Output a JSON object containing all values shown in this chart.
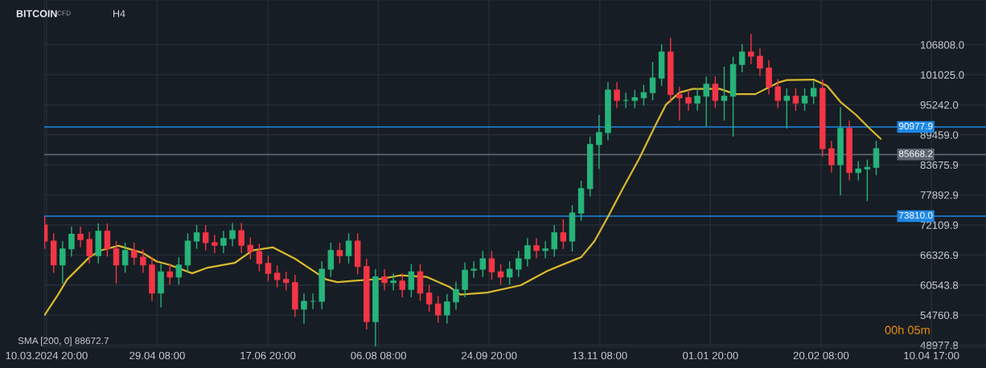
{
  "chart_data": {
    "type": "candlestick",
    "title": "BITCOIN",
    "subtitle": "CFD",
    "x": [
      "2024-03-10",
      "2024-03-14",
      "2024-03-18",
      "2024-03-22",
      "2024-03-26",
      "2024-03-30",
      "2024-04-03",
      "2024-04-07",
      "2024-04-11",
      "2024-04-15",
      "2024-04-19",
      "2024-04-23",
      "2024-04-27",
      "2024-05-01",
      "2024-05-05",
      "2024-05-09",
      "2024-05-13",
      "2024-05-17",
      "2024-05-21",
      "2024-05-25",
      "2024-05-29",
      "2024-06-02",
      "2024-06-06",
      "2024-06-10",
      "2024-06-14",
      "2024-06-18",
      "2024-06-22",
      "2024-06-26",
      "2024-06-30",
      "2024-07-04",
      "2024-07-08",
      "2024-07-12",
      "2024-07-16",
      "2024-07-20",
      "2024-07-24",
      "2024-07-28",
      "2024-08-01",
      "2024-08-05",
      "2024-08-09",
      "2024-08-13",
      "2024-08-17",
      "2024-08-21",
      "2024-08-25",
      "2024-08-29",
      "2024-09-02",
      "2024-09-06",
      "2024-09-10",
      "2024-09-14",
      "2024-09-18",
      "2024-09-22",
      "2024-09-26",
      "2024-09-30",
      "2024-10-04",
      "2024-10-08",
      "2024-10-12",
      "2024-10-16",
      "2024-10-20",
      "2024-10-24",
      "2024-10-28",
      "2024-11-01",
      "2024-11-05",
      "2024-11-09",
      "2024-11-13",
      "2024-11-17",
      "2024-11-21",
      "2024-11-25",
      "2024-11-29",
      "2024-12-03",
      "2024-12-07",
      "2024-12-11",
      "2024-12-15",
      "2024-12-19",
      "2024-12-23",
      "2024-12-27",
      "2024-12-31",
      "2025-01-04",
      "2025-01-08",
      "2025-01-12",
      "2025-01-16",
      "2025-01-20",
      "2025-01-24",
      "2025-01-28",
      "2025-02-01",
      "2025-02-05",
      "2025-02-09",
      "2025-02-13",
      "2025-02-17",
      "2025-02-21",
      "2025-02-25",
      "2025-03-01",
      "2025-03-05",
      "2025-03-09",
      "2025-03-13",
      "2025-03-17"
    ],
    "ohlc": [
      [
        72100,
        73800,
        67500,
        69000
      ],
      [
        69000,
        70500,
        62900,
        64400
      ],
      [
        64400,
        69000,
        60800,
        67500
      ],
      [
        67500,
        71800,
        66000,
        70300
      ],
      [
        70300,
        71800,
        67800,
        69300
      ],
      [
        69300,
        70800,
        64700,
        66200
      ],
      [
        66200,
        72400,
        64700,
        70900
      ],
      [
        70900,
        72400,
        66000,
        67500
      ],
      [
        67500,
        69000,
        60800,
        64400
      ],
      [
        64400,
        68700,
        62900,
        67200
      ],
      [
        67200,
        68700,
        64400,
        65900
      ],
      [
        65900,
        67400,
        62900,
        64400
      ],
      [
        64400,
        65900,
        57500,
        59000
      ],
      [
        59000,
        64600,
        56200,
        63100
      ],
      [
        63100,
        64600,
        60600,
        62100
      ],
      [
        62100,
        65900,
        60600,
        64400
      ],
      [
        64400,
        70500,
        62900,
        69000
      ],
      [
        69000,
        72100,
        67500,
        70600
      ],
      [
        70600,
        72100,
        67200,
        68700
      ],
      [
        68700,
        70200,
        66700,
        68200
      ],
      [
        68200,
        71000,
        66700,
        69500
      ],
      [
        69500,
        72500,
        68000,
        71000
      ],
      [
        71000,
        72500,
        66700,
        68200
      ],
      [
        68200,
        69700,
        65500,
        67000
      ],
      [
        67000,
        68500,
        63200,
        64700
      ],
      [
        64700,
        66200,
        61300,
        62800
      ],
      [
        62800,
        64300,
        60100,
        61600
      ],
      [
        61600,
        63100,
        59500,
        61000
      ],
      [
        61000,
        62500,
        54400,
        55900
      ],
      [
        55900,
        58900,
        53100,
        57400
      ],
      [
        57400,
        58900,
        55900,
        57400
      ],
      [
        57400,
        65100,
        55900,
        63600
      ],
      [
        63600,
        68700,
        62100,
        67200
      ],
      [
        67200,
        68700,
        64700,
        66200
      ],
      [
        66200,
        70500,
        64700,
        69000
      ],
      [
        69000,
        70500,
        62600,
        64100
      ],
      [
        64100,
        65600,
        52000,
        53500
      ],
      [
        53500,
        63600,
        48700,
        62100
      ],
      [
        62100,
        63600,
        59500,
        61000
      ],
      [
        61000,
        62800,
        59500,
        61300
      ],
      [
        61300,
        62800,
        58200,
        59700
      ],
      [
        59700,
        64600,
        58200,
        63100
      ],
      [
        63100,
        64600,
        57500,
        59000
      ],
      [
        59000,
        60500,
        55400,
        56900
      ],
      [
        56900,
        58400,
        53300,
        54800
      ],
      [
        54800,
        58800,
        53100,
        57300
      ],
      [
        57300,
        61200,
        55800,
        59700
      ],
      [
        59700,
        64900,
        58200,
        63400
      ],
      [
        63400,
        65100,
        61900,
        63600
      ],
      [
        63600,
        67100,
        62100,
        65600
      ],
      [
        65600,
        67100,
        61600,
        63100
      ],
      [
        63100,
        64600,
        60600,
        62100
      ],
      [
        62100,
        65100,
        60600,
        63600
      ],
      [
        63600,
        67100,
        62100,
        65600
      ],
      [
        65600,
        69600,
        64100,
        68100
      ],
      [
        68100,
        69600,
        65700,
        67200
      ],
      [
        67200,
        69000,
        65700,
        67500
      ],
      [
        67500,
        72100,
        66000,
        70600
      ],
      [
        70600,
        73200,
        67500,
        69000
      ],
      [
        69000,
        75900,
        67000,
        74400
      ],
      [
        74400,
        80600,
        72900,
        79100
      ],
      [
        79100,
        89100,
        77600,
        87600
      ],
      [
        87600,
        93300,
        82900,
        89900
      ],
      [
        89900,
        99600,
        88400,
        98100
      ],
      [
        98100,
        99600,
        94600,
        96100
      ],
      [
        96100,
        97600,
        94600,
        96100
      ],
      [
        96100,
        98100,
        94600,
        96600
      ],
      [
        96600,
        99100,
        95100,
        97600
      ],
      [
        97600,
        103500,
        96100,
        100400
      ],
      [
        100400,
        106900,
        98900,
        105400
      ],
      [
        105400,
        108100,
        95700,
        97200
      ],
      [
        97200,
        98700,
        92200,
        96600
      ],
      [
        96600,
        98100,
        94100,
        95600
      ],
      [
        95600,
        98400,
        94100,
        96900
      ],
      [
        96900,
        100700,
        91100,
        99200
      ],
      [
        99200,
        100700,
        94600,
        96100
      ],
      [
        96100,
        102600,
        92200,
        96900
      ],
      [
        96900,
        104500,
        89100,
        103000
      ],
      [
        103000,
        106900,
        101500,
        105400
      ],
      [
        105400,
        108900,
        103100,
        104600
      ],
      [
        104600,
        106100,
        100800,
        102300
      ],
      [
        102300,
        103800,
        97200,
        98700
      ],
      [
        98700,
        100200,
        94600,
        96100
      ],
      [
        96100,
        98400,
        90700,
        96900
      ],
      [
        96900,
        98400,
        94100,
        95600
      ],
      [
        95600,
        98400,
        94100,
        96900
      ],
      [
        96900,
        99900,
        95400,
        98400
      ],
      [
        98400,
        100100,
        85300,
        86800
      ],
      [
        86800,
        88300,
        82200,
        83700
      ],
      [
        83700,
        94800,
        77800,
        90700
      ],
      [
        90700,
        92200,
        80700,
        82200
      ],
      [
        82200,
        84400,
        80700,
        82900
      ],
      [
        82900,
        84700,
        76700,
        83200
      ],
      [
        83200,
        88300,
        81700,
        86800
      ]
    ],
    "series": [
      {
        "type": "line",
        "color": "#d9b92e",
        "x": [
          "2024-03-10",
          "2024-03-16",
          "2024-03-20",
          "2024-03-24",
          "2024-03-30",
          "2024-04-04",
          "2024-04-12",
          "2024-04-23",
          "2024-04-29",
          "2024-05-05",
          "2024-05-15",
          "2024-05-22",
          "2024-06-03",
          "2024-06-11",
          "2024-06-20",
          "2024-06-30",
          "2024-07-14",
          "2024-07-19",
          "2024-07-28",
          "2024-08-07",
          "2024-08-16",
          "2024-08-28",
          "2024-09-07",
          "2024-09-12",
          "2024-09-24",
          "2024-10-09",
          "2024-10-21",
          "2024-10-29",
          "2024-11-05",
          "2024-11-11",
          "2024-11-17",
          "2024-11-24",
          "2024-12-01",
          "2024-12-08",
          "2024-12-13",
          "2024-12-19",
          "2024-12-25",
          "2025-01-06",
          "2025-01-13",
          "2025-01-22",
          "2025-02-01",
          "2025-02-05",
          "2025-02-17",
          "2025-02-23",
          "2025-03-01",
          "2025-03-08",
          "2025-03-14",
          "2025-03-19"
        ],
        "values": [
          54800,
          58700,
          61600,
          63300,
          65900,
          67200,
          68100,
          66700,
          65100,
          64400,
          62800,
          63900,
          64800,
          67200,
          67800,
          65600,
          61600,
          61100,
          61400,
          61700,
          62400,
          62100,
          60200,
          58700,
          59100,
          60500,
          63300,
          64700,
          65900,
          69000,
          73700,
          79400,
          84900,
          91100,
          95300,
          97600,
          98300,
          98300,
          97300,
          97300,
          99500,
          100000,
          100100,
          98900,
          95800,
          93300,
          90700,
          88700
        ]
      }
    ],
    "xlim": [
      "2024-03-09T19:00",
      "2025-05-05T03:00"
    ],
    "xticks": [
      {
        "value": "2024-03-10T20:00",
        "label": "10.03.2024 20:00"
      },
      {
        "value": "2024-04-29T08:00",
        "label": "29.04 08:00"
      },
      {
        "value": "2024-06-17T20:00",
        "label": "17.06 20:00"
      },
      {
        "value": "2024-08-06T08:00",
        "label": "06.08 08:00"
      },
      {
        "value": "2024-09-24T20:00",
        "label": "24.09 20:00"
      },
      {
        "value": "2024-11-13T08:00",
        "label": "13.11 08:00"
      },
      {
        "value": "2025-01-01T20:00",
        "label": "01.01 20:00"
      },
      {
        "value": "2025-02-20T08:00",
        "label": "20.02 08:00"
      },
      {
        "value": "2025-04-10T17:00",
        "label": "10.04 17:00"
      }
    ],
    "ylim": [
      48590,
      115420
    ],
    "yticks": [
      48977.8,
      54760.8,
      60543.8,
      66326.9,
      72109.9,
      77892.9,
      83675.9,
      {
        "value": 89459,
        "label": "89459.0"
      },
      {
        "value": 95242,
        "label": "95242.0"
      },
      {
        "value": 101025,
        "label": "101025.0"
      },
      {
        "value": 106808,
        "label": "106808.0"
      }
    ],
    "grid": true,
    "ref_lines": [
      {
        "axis": "y",
        "value": 90977.9,
        "label": "90977.9",
        "color": "#1e88e5"
      },
      {
        "axis": "y",
        "value": 73810.0,
        "label": "73810.0",
        "color": "#1e88e5"
      },
      {
        "axis": "y",
        "value": 85668.2,
        "label": "85668.2",
        "color": "#5b6570"
      }
    ],
    "annotations": [
      "H4",
      "SMA [200, 0] 88672.7",
      "00h 05m"
    ]
  }
}
